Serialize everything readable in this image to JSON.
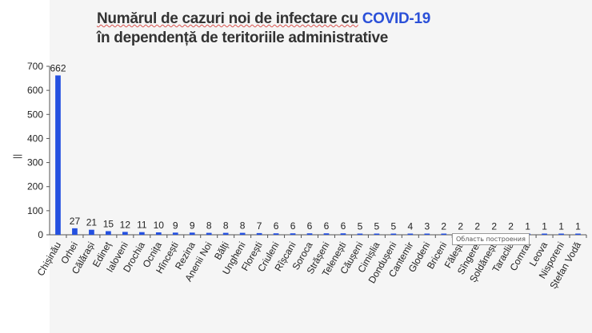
{
  "title": {
    "line1_prefix": "Numărul de cazuri noi de infectare cu",
    "line1_accent": "COVID-19",
    "line2": "în dependență de teritoriile administrative"
  },
  "tooltip": "Область построения",
  "y_axis_mark": "||",
  "colors": {
    "bar": "#2450e0",
    "axis": "#555555",
    "background_panel": "#f5f5f5",
    "accent": "#2b50d8"
  },
  "chart_data": {
    "type": "bar",
    "title": "Numărul de cazuri noi de infectare cu COVID-19 în dependență de teritoriile administrative",
    "xlabel": "",
    "ylabel": "",
    "ylim": [
      0,
      700
    ],
    "yticks": [
      0,
      100,
      200,
      300,
      400,
      500,
      600,
      700
    ],
    "grid": false,
    "categories": [
      "Chișinău",
      "Orhei",
      "Călărași",
      "Edineț",
      "Ialoveni",
      "Drochia",
      "Ocnița",
      "Hîncești",
      "Rezina",
      "Anenii Noi",
      "Bălți",
      "Ungheni",
      "Florești",
      "Criuleni",
      "Rîșcani",
      "Soroca",
      "Strășeni",
      "Telenești",
      "Căușeni",
      "Cimișlia",
      "Dondușeni",
      "Cantemir",
      "Glodeni",
      "Briceni",
      "Fălești",
      "Sîngerei",
      "Șoldănești",
      "Taraclia",
      "Comrat",
      "Leova",
      "Nisporeni",
      "Ștefan Vodă"
    ],
    "values": [
      662,
      27,
      21,
      15,
      12,
      11,
      10,
      9,
      9,
      8,
      8,
      8,
      7,
      6,
      6,
      6,
      6,
      6,
      5,
      5,
      5,
      4,
      3,
      2,
      2,
      2,
      2,
      2,
      1,
      1,
      1,
      1
    ]
  }
}
